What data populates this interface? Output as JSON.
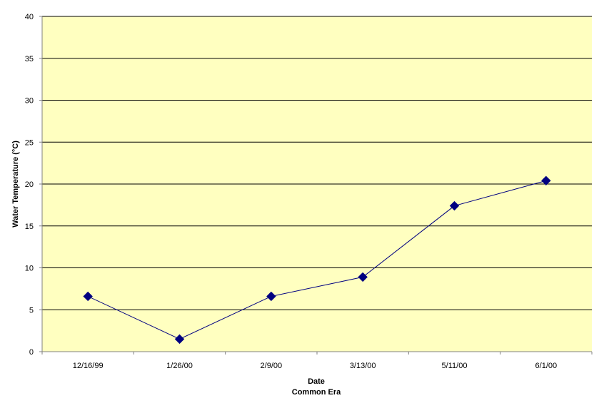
{
  "chart_data": {
    "type": "line",
    "xlabel": "Date",
    "xlabel_sub": "Common Era",
    "ylabel": "Water Temperature (°C)",
    "ylim": [
      0,
      40
    ],
    "yticks": [
      0,
      5,
      10,
      15,
      20,
      25,
      30,
      35,
      40
    ],
    "categories": [
      "12/16/99",
      "1/26/00",
      "2/9/00",
      "3/13/00",
      "5/11/00",
      "6/1/00"
    ],
    "series": [
      {
        "values": [
          6.6,
          1.5,
          6.6,
          8.9,
          17.4,
          20.4
        ]
      }
    ],
    "grid": true,
    "legend": "none",
    "colors": {
      "plot_background": "#ffffc0",
      "series": "#000080",
      "gridline": "#000000"
    }
  }
}
